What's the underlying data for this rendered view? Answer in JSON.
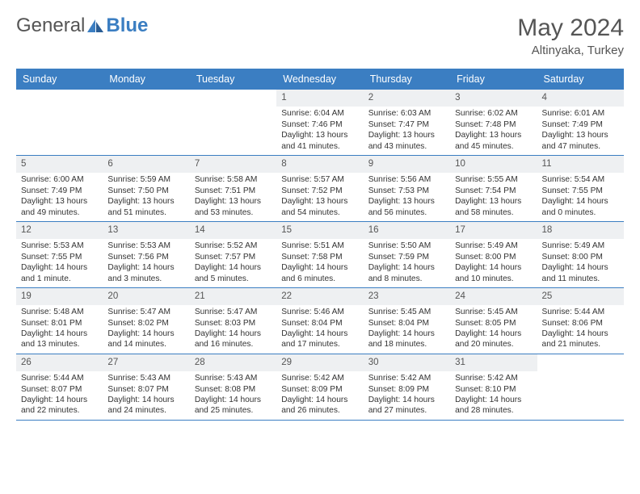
{
  "logo": {
    "text1": "General",
    "text2": "Blue"
  },
  "title": "May 2024",
  "location": "Altinyaka, Turkey",
  "colors": {
    "header_bg": "#3b7ec2",
    "daynum_bg": "#eef0f2",
    "text": "#555555"
  },
  "weekdays": [
    "Sunday",
    "Monday",
    "Tuesday",
    "Wednesday",
    "Thursday",
    "Friday",
    "Saturday"
  ],
  "weeks": [
    [
      null,
      null,
      null,
      {
        "n": "1",
        "sr": "6:04 AM",
        "ss": "7:46 PM",
        "dl": "13 hours and 41 minutes."
      },
      {
        "n": "2",
        "sr": "6:03 AM",
        "ss": "7:47 PM",
        "dl": "13 hours and 43 minutes."
      },
      {
        "n": "3",
        "sr": "6:02 AM",
        "ss": "7:48 PM",
        "dl": "13 hours and 45 minutes."
      },
      {
        "n": "4",
        "sr": "6:01 AM",
        "ss": "7:49 PM",
        "dl": "13 hours and 47 minutes."
      }
    ],
    [
      {
        "n": "5",
        "sr": "6:00 AM",
        "ss": "7:49 PM",
        "dl": "13 hours and 49 minutes."
      },
      {
        "n": "6",
        "sr": "5:59 AM",
        "ss": "7:50 PM",
        "dl": "13 hours and 51 minutes."
      },
      {
        "n": "7",
        "sr": "5:58 AM",
        "ss": "7:51 PM",
        "dl": "13 hours and 53 minutes."
      },
      {
        "n": "8",
        "sr": "5:57 AM",
        "ss": "7:52 PM",
        "dl": "13 hours and 54 minutes."
      },
      {
        "n": "9",
        "sr": "5:56 AM",
        "ss": "7:53 PM",
        "dl": "13 hours and 56 minutes."
      },
      {
        "n": "10",
        "sr": "5:55 AM",
        "ss": "7:54 PM",
        "dl": "13 hours and 58 minutes."
      },
      {
        "n": "11",
        "sr": "5:54 AM",
        "ss": "7:55 PM",
        "dl": "14 hours and 0 minutes."
      }
    ],
    [
      {
        "n": "12",
        "sr": "5:53 AM",
        "ss": "7:55 PM",
        "dl": "14 hours and 1 minute."
      },
      {
        "n": "13",
        "sr": "5:53 AM",
        "ss": "7:56 PM",
        "dl": "14 hours and 3 minutes."
      },
      {
        "n": "14",
        "sr": "5:52 AM",
        "ss": "7:57 PM",
        "dl": "14 hours and 5 minutes."
      },
      {
        "n": "15",
        "sr": "5:51 AM",
        "ss": "7:58 PM",
        "dl": "14 hours and 6 minutes."
      },
      {
        "n": "16",
        "sr": "5:50 AM",
        "ss": "7:59 PM",
        "dl": "14 hours and 8 minutes."
      },
      {
        "n": "17",
        "sr": "5:49 AM",
        "ss": "8:00 PM",
        "dl": "14 hours and 10 minutes."
      },
      {
        "n": "18",
        "sr": "5:49 AM",
        "ss": "8:00 PM",
        "dl": "14 hours and 11 minutes."
      }
    ],
    [
      {
        "n": "19",
        "sr": "5:48 AM",
        "ss": "8:01 PM",
        "dl": "14 hours and 13 minutes."
      },
      {
        "n": "20",
        "sr": "5:47 AM",
        "ss": "8:02 PM",
        "dl": "14 hours and 14 minutes."
      },
      {
        "n": "21",
        "sr": "5:47 AM",
        "ss": "8:03 PM",
        "dl": "14 hours and 16 minutes."
      },
      {
        "n": "22",
        "sr": "5:46 AM",
        "ss": "8:04 PM",
        "dl": "14 hours and 17 minutes."
      },
      {
        "n": "23",
        "sr": "5:45 AM",
        "ss": "8:04 PM",
        "dl": "14 hours and 18 minutes."
      },
      {
        "n": "24",
        "sr": "5:45 AM",
        "ss": "8:05 PM",
        "dl": "14 hours and 20 minutes."
      },
      {
        "n": "25",
        "sr": "5:44 AM",
        "ss": "8:06 PM",
        "dl": "14 hours and 21 minutes."
      }
    ],
    [
      {
        "n": "26",
        "sr": "5:44 AM",
        "ss": "8:07 PM",
        "dl": "14 hours and 22 minutes."
      },
      {
        "n": "27",
        "sr": "5:43 AM",
        "ss": "8:07 PM",
        "dl": "14 hours and 24 minutes."
      },
      {
        "n": "28",
        "sr": "5:43 AM",
        "ss": "8:08 PM",
        "dl": "14 hours and 25 minutes."
      },
      {
        "n": "29",
        "sr": "5:42 AM",
        "ss": "8:09 PM",
        "dl": "14 hours and 26 minutes."
      },
      {
        "n": "30",
        "sr": "5:42 AM",
        "ss": "8:09 PM",
        "dl": "14 hours and 27 minutes."
      },
      {
        "n": "31",
        "sr": "5:42 AM",
        "ss": "8:10 PM",
        "dl": "14 hours and 28 minutes."
      },
      null
    ]
  ],
  "labels": {
    "sunrise": "Sunrise:",
    "sunset": "Sunset:",
    "daylight": "Daylight:"
  }
}
